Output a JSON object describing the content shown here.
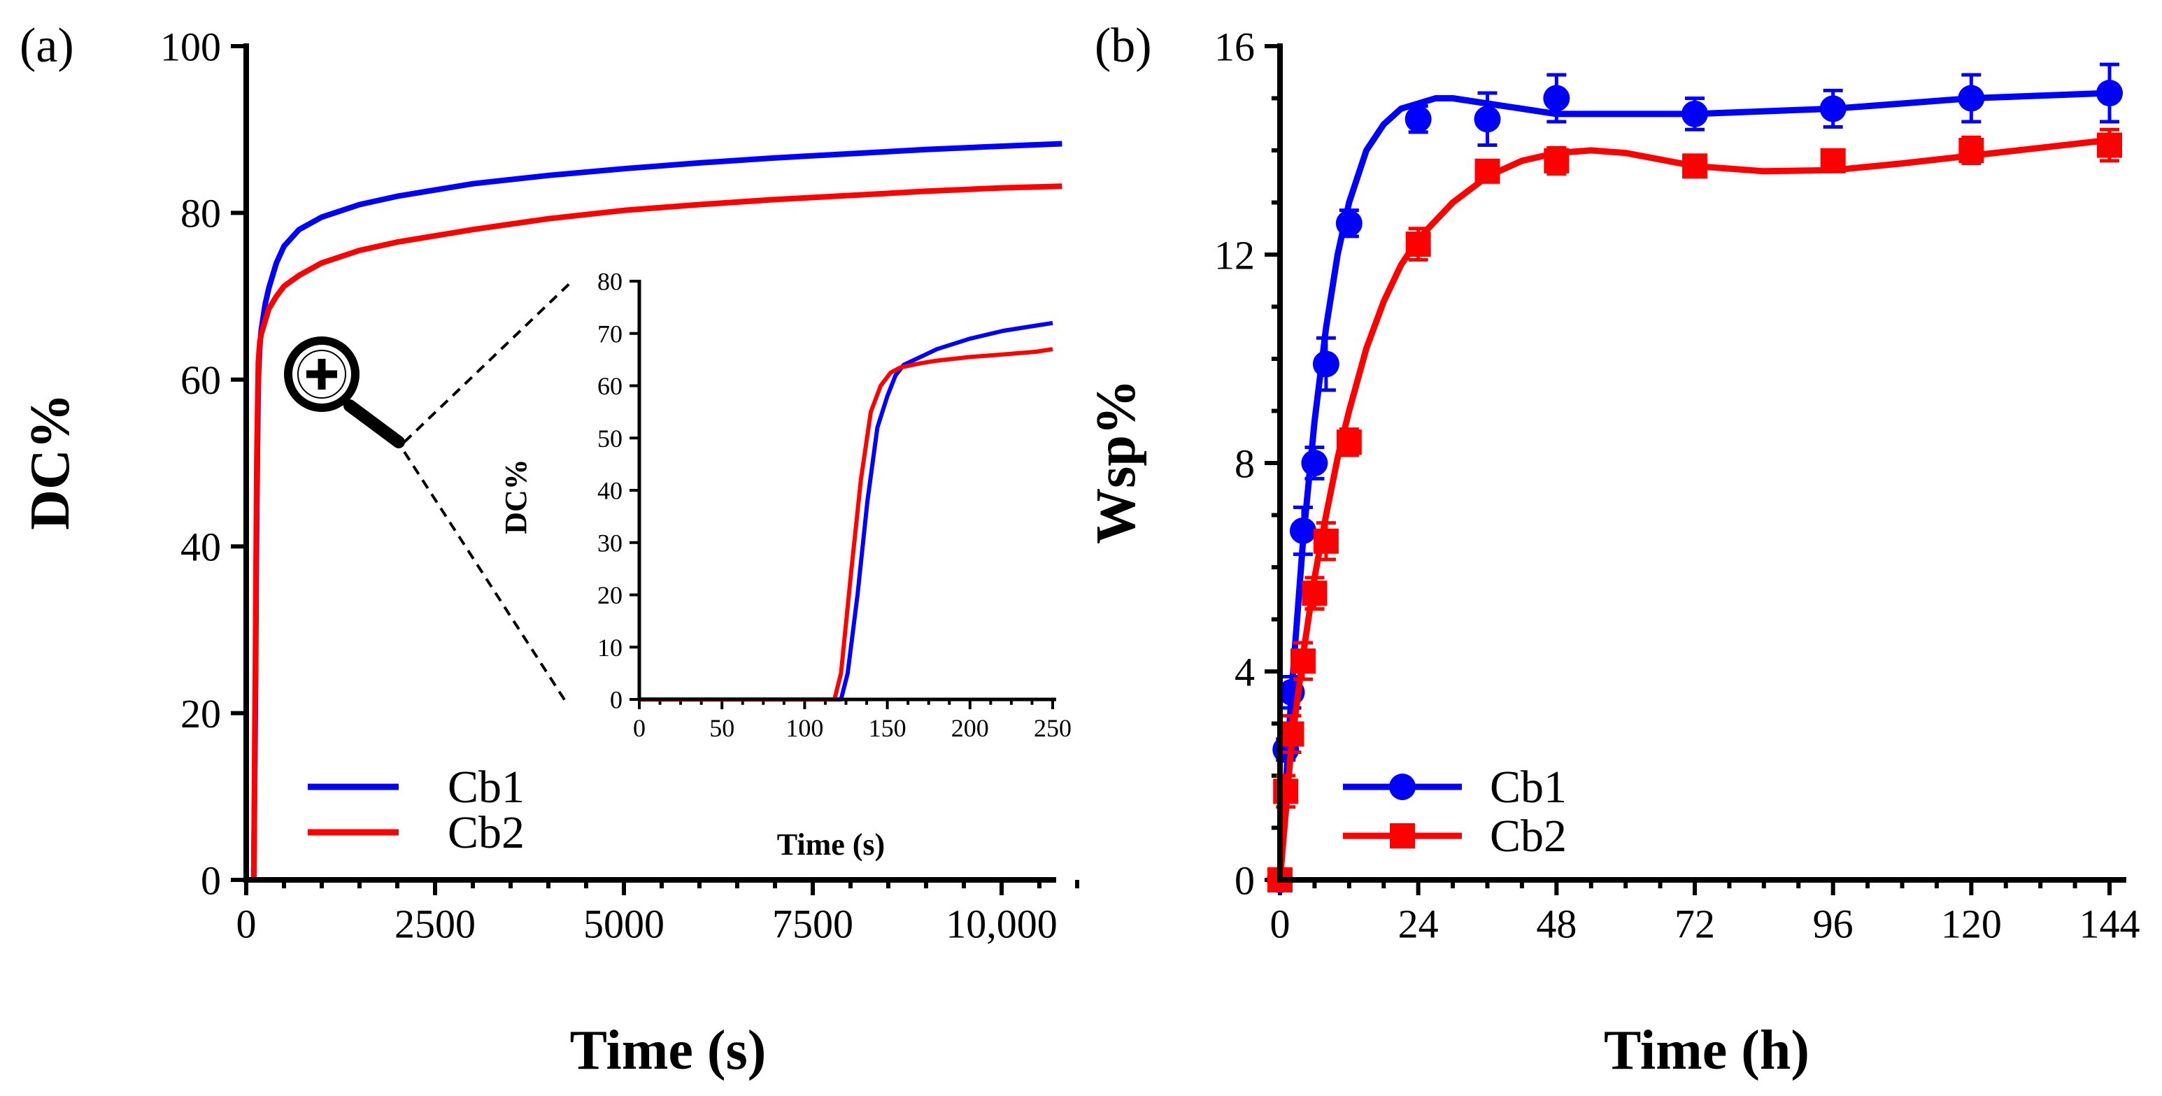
{
  "colors": {
    "cb1": "#0000ff",
    "cb2": "#ff0000",
    "axis": "#000000"
  },
  "chart_data": [
    {
      "type": "line",
      "panel_label": "(a)",
      "xlabel": "Time (s)",
      "ylabel": "DC%",
      "xlim": [
        0,
        11000
      ],
      "ylim": [
        0,
        100
      ],
      "xticks": [
        0,
        2500,
        5000,
        7500,
        10000
      ],
      "xtick_labels": [
        "0",
        "2500",
        "5000",
        "7500",
        "10,000"
      ],
      "yticks": [
        0,
        20,
        40,
        60,
        80,
        100
      ],
      "ytick_labels": [
        "0",
        "20",
        "40",
        "60",
        "80",
        "100"
      ],
      "legend_position": "bottom-left",
      "icon": "magnifier-plus-icon",
      "series": [
        {
          "name": "Cb1",
          "x": [
            0,
            100,
            120,
            140,
            160,
            180,
            200,
            250,
            300,
            400,
            500,
            700,
            1000,
            1500,
            2000,
            3000,
            4000,
            5000,
            6000,
            7000,
            8000,
            9000,
            10000,
            10800
          ],
          "values": [
            0,
            0,
            20,
            45,
            60,
            64,
            66,
            69,
            71,
            74,
            76,
            78,
            79.5,
            81,
            82,
            83.5,
            84.5,
            85.3,
            86,
            86.6,
            87.1,
            87.6,
            88,
            88.3
          ]
        },
        {
          "name": "Cb2",
          "x": [
            0,
            100,
            120,
            140,
            160,
            180,
            200,
            250,
            300,
            400,
            500,
            700,
            1000,
            1500,
            2000,
            3000,
            4000,
            5000,
            6000,
            7000,
            8000,
            9000,
            10000,
            10800
          ],
          "values": [
            0,
            0,
            25,
            50,
            62,
            64.5,
            65.5,
            67,
            68.5,
            70,
            71.2,
            72.5,
            74,
            75.5,
            76.5,
            78,
            79.3,
            80.3,
            81,
            81.6,
            82.1,
            82.6,
            83,
            83.2
          ]
        }
      ],
      "inset": {
        "type": "line",
        "xlabel": "Time (s)",
        "ylabel": "DC%",
        "xlim": [
          0,
          250
        ],
        "ylim": [
          0,
          80
        ],
        "xticks": [
          0,
          50,
          100,
          150,
          200,
          250
        ],
        "xtick_labels": [
          "0",
          "50",
          "100",
          "150",
          "200",
          "250"
        ],
        "yticks": [
          0,
          10,
          20,
          30,
          40,
          50,
          60,
          70,
          80
        ],
        "ytick_labels": [
          "0",
          "10",
          "20",
          "30",
          "40",
          "50",
          "60",
          "70",
          "80"
        ],
        "series": [
          {
            "name": "Cb1",
            "x": [
              0,
              122,
              126,
              132,
              138,
              144,
              150,
              155,
              160,
              170,
              180,
              200,
              220,
              240,
              250
            ],
            "values": [
              0,
              0,
              5,
              20,
              38,
              52,
              58,
              62,
              64,
              65.5,
              67,
              69,
              70.5,
              71.5,
              72
            ]
          },
          {
            "name": "Cb2",
            "x": [
              0,
              118,
              122,
              128,
              134,
              140,
              146,
              152,
              158,
              170,
              180,
              200,
              220,
              240,
              250
            ],
            "values": [
              0,
              0,
              5,
              24,
              42,
              55,
              60,
              62.5,
              63.5,
              64.3,
              64.8,
              65.5,
              66,
              66.5,
              67
            ]
          }
        ]
      }
    },
    {
      "type": "line",
      "panel_label": "(b)",
      "xlabel": "Time (h)",
      "ylabel": "Wsp%",
      "xlim": [
        0,
        144
      ],
      "ylim": [
        0,
        16
      ],
      "xticks": [
        0,
        24,
        48,
        72,
        96,
        120,
        144
      ],
      "xtick_labels": [
        "0",
        "24",
        "48",
        "72",
        "96",
        "120",
        "144"
      ],
      "yticks": [
        0,
        4,
        8,
        12,
        16
      ],
      "ytick_labels": [
        "0",
        "4",
        "8",
        "12",
        "16"
      ],
      "legend_position": "bottom-left",
      "series": [
        {
          "name": "Cb1",
          "marker": "circle",
          "points": {
            "x": [
              0,
              1,
              2,
              4,
              6,
              8,
              12,
              24,
              36,
              48,
              72,
              96,
              120,
              144
            ],
            "y": [
              0,
              2.5,
              3.6,
              6.7,
              8.0,
              9.9,
              12.6,
              14.6,
              14.6,
              15.0,
              14.7,
              14.8,
              15.0,
              15.1
            ],
            "err": [
              0.05,
              0.2,
              0.3,
              0.45,
              0.3,
              0.5,
              0.25,
              0.25,
              0.5,
              0.45,
              0.3,
              0.35,
              0.45,
              0.55
            ]
          },
          "fit": {
            "x": [
              0,
              2,
              4,
              6,
              8,
              10,
              12,
              15,
              18,
              21,
              24,
              27,
              30,
              36,
              42,
              48,
              60,
              72,
              84,
              96,
              108,
              120,
              132,
              144
            ],
            "y": [
              0,
              3.6,
              6.5,
              8.8,
              10.6,
              12.0,
              13.0,
              14.0,
              14.5,
              14.8,
              14.9,
              15.0,
              15.0,
              14.9,
              14.8,
              14.7,
              14.7,
              14.7,
              14.75,
              14.8,
              14.9,
              15.0,
              15.05,
              15.1
            ]
          }
        },
        {
          "name": "Cb2",
          "marker": "square",
          "points": {
            "x": [
              0,
              1,
              2,
              4,
              6,
              8,
              12,
              24,
              36,
              48,
              72,
              96,
              120,
              144
            ],
            "y": [
              0,
              1.7,
              2.8,
              4.2,
              5.5,
              6.5,
              8.4,
              12.2,
              13.6,
              13.8,
              13.7,
              13.8,
              14.0,
              14.1
            ],
            "err": [
              0.05,
              0.3,
              0.35,
              0.35,
              0.3,
              0.35,
              0.25,
              0.3,
              0.2,
              0.25,
              0.2,
              0.2,
              0.25,
              0.3
            ]
          },
          "fit": {
            "x": [
              0,
              2,
              4,
              6,
              8,
              10,
              12,
              15,
              18,
              21,
              24,
              30,
              36,
              42,
              48,
              54,
              60,
              72,
              84,
              96,
              108,
              120,
              132,
              144
            ],
            "y": [
              0,
              2.6,
              4.3,
              5.8,
              7.0,
              8.1,
              9.0,
              10.2,
              11.1,
              11.8,
              12.3,
              13.0,
              13.5,
              13.8,
              13.95,
              14.0,
              13.95,
              13.7,
              13.6,
              13.62,
              13.75,
              13.9,
              14.05,
              14.2
            ]
          }
        }
      ]
    }
  ]
}
